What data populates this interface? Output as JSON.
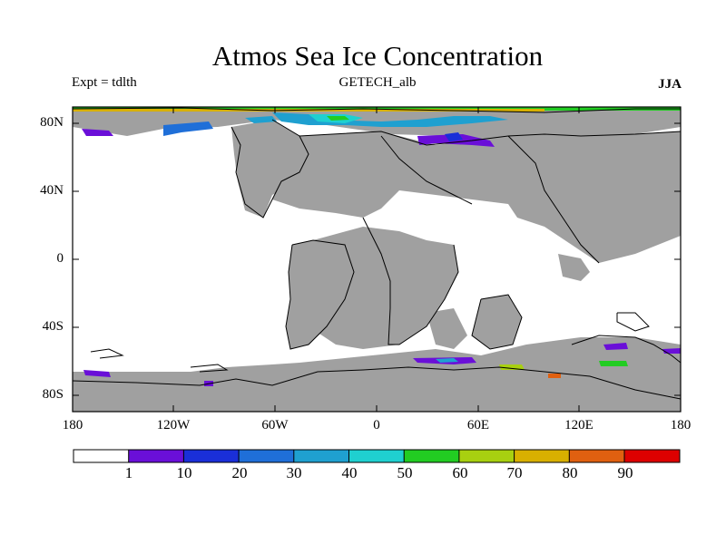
{
  "title": "Atmos Sea Ice Concentration",
  "left_label": "Expt = tdlth",
  "center_label": "GETECH_alb",
  "right_label": "JJA",
  "lat_ticks": [
    "80N",
    "40N",
    "0",
    "40S",
    "80S"
  ],
  "lon_ticks": [
    "180",
    "120W",
    "60W",
    "0",
    "60E",
    "120E",
    "180"
  ],
  "colorbar": {
    "labels": [
      "1",
      "10",
      "20",
      "30",
      "40",
      "50",
      "60",
      "70",
      "80",
      "90"
    ],
    "colors": [
      "#ffffff",
      "#6a0fd8",
      "#1a2fd8",
      "#1f6fd8",
      "#1fa0d0",
      "#1fd0d0",
      "#22cc22",
      "#a8d010",
      "#d8b000",
      "#e06010",
      "#dd0000"
    ]
  },
  "colors": {
    "land": "#a0a0a0",
    "ocean": "#ffffff",
    "coastline": "#000000"
  }
}
